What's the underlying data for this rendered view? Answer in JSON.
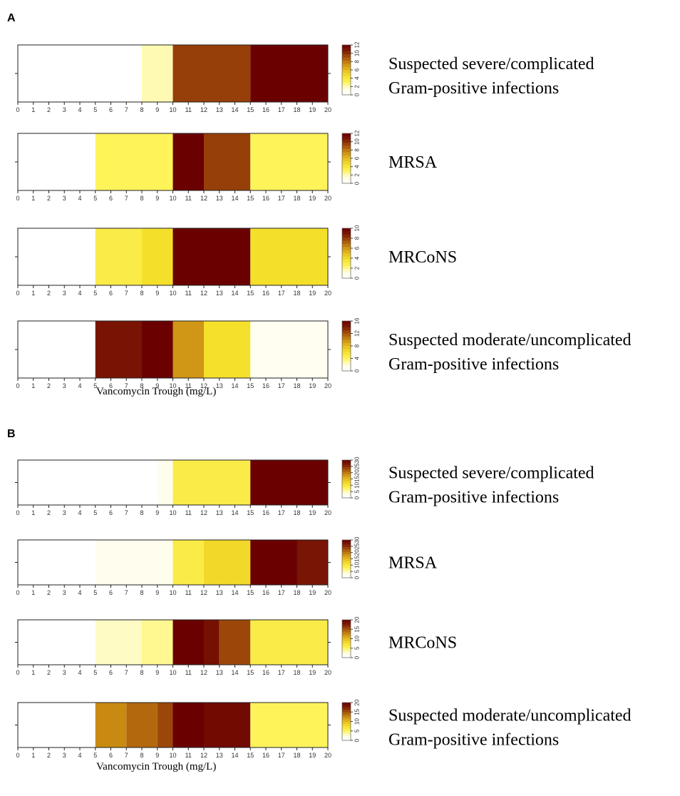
{
  "chart_data": [
    {
      "panel": "A",
      "type": "heatmap",
      "xlabel": "Vancomycin Trough (mg/L)",
      "xlim": [
        0,
        20
      ],
      "xticks": [
        0,
        1,
        2,
        3,
        4,
        5,
        6,
        7,
        8,
        9,
        10,
        11,
        12,
        13,
        14,
        15,
        16,
        17,
        18,
        19,
        20
      ],
      "rows": [
        {
          "label_lines": [
            "Suspected severe/complicated",
            "Gram-positive infections"
          ],
          "colorbar_ticks": [
            "0",
            "2",
            "4",
            "6",
            "8",
            "10",
            "12"
          ],
          "cmax": 12,
          "segments": [
            {
              "from": 0,
              "to": 8,
              "value": 0
            },
            {
              "from": 8,
              "to": 10,
              "value": 2
            },
            {
              "from": 10,
              "to": 15,
              "value": 9.5
            },
            {
              "from": 15,
              "to": 20,
              "value": 12
            }
          ]
        },
        {
          "label_lines": [
            "MRSA"
          ],
          "colorbar_ticks": [
            "0",
            "2",
            "4",
            "6",
            "8",
            "10",
            "12"
          ],
          "cmax": 12,
          "segments": [
            {
              "from": 0,
              "to": 5,
              "value": 0
            },
            {
              "from": 5,
              "to": 10,
              "value": 3
            },
            {
              "from": 10,
              "to": 12,
              "value": 12
            },
            {
              "from": 12,
              "to": 15,
              "value": 9.5
            },
            {
              "from": 15,
              "to": 20,
              "value": 3
            }
          ]
        },
        {
          "label_lines": [
            "MRCoNS"
          ],
          "colorbar_ticks": [
            "0",
            "2",
            "4",
            "6",
            "8",
            "10"
          ],
          "cmax": 10,
          "segments": [
            {
              "from": 0,
              "to": 5,
              "value": 0
            },
            {
              "from": 5,
              "to": 8,
              "value": 3
            },
            {
              "from": 8,
              "to": 10,
              "value": 3.8
            },
            {
              "from": 10,
              "to": 15,
              "value": 10
            },
            {
              "from": 15,
              "to": 20,
              "value": 3.8
            }
          ]
        },
        {
          "label_lines": [
            "Suspected moderate/uncomplicated",
            "Gram-positive infections"
          ],
          "colorbar_ticks": [
            "0",
            "4",
            "8",
            "12",
            "16"
          ],
          "cmax": 16,
          "segments": [
            {
              "from": 0,
              "to": 5,
              "value": 0
            },
            {
              "from": 5,
              "to": 8,
              "value": 14.5
            },
            {
              "from": 8,
              "to": 10,
              "value": 16
            },
            {
              "from": 10,
              "to": 12,
              "value": 9.5
            },
            {
              "from": 12,
              "to": 15,
              "value": 6
            },
            {
              "from": 15,
              "to": 20,
              "value": 1
            }
          ]
        }
      ]
    },
    {
      "panel": "B",
      "type": "heatmap",
      "xlabel": "Vancomycin Trough (mg/L)",
      "xlim": [
        0,
        20
      ],
      "xticks": [
        0,
        1,
        2,
        3,
        4,
        5,
        6,
        7,
        8,
        9,
        10,
        11,
        12,
        13,
        14,
        15,
        16,
        17,
        18,
        19,
        20
      ],
      "rows": [
        {
          "label_lines": [
            "Suspected severe/complicated",
            "Gram-positive infections"
          ],
          "colorbar_ticks": [
            "0",
            "5",
            "10",
            "15",
            "20",
            "25",
            "30"
          ],
          "cmax": 30,
          "segments": [
            {
              "from": 0,
              "to": 9,
              "value": 0
            },
            {
              "from": 9,
              "to": 10,
              "value": 2
            },
            {
              "from": 10,
              "to": 15,
              "value": 9
            },
            {
              "from": 15,
              "to": 20,
              "value": 30
            }
          ]
        },
        {
          "label_lines": [
            "MRSA"
          ],
          "colorbar_ticks": [
            "0",
            "5",
            "10",
            "15",
            "20",
            "25",
            "30"
          ],
          "cmax": 30,
          "segments": [
            {
              "from": 0,
              "to": 5,
              "value": 0
            },
            {
              "from": 5,
              "to": 10,
              "value": 2
            },
            {
              "from": 10,
              "to": 12,
              "value": 9
            },
            {
              "from": 12,
              "to": 15,
              "value": 12
            },
            {
              "from": 15,
              "to": 18,
              "value": 30
            },
            {
              "from": 18,
              "to": 20,
              "value": 27
            }
          ]
        },
        {
          "label_lines": [
            "MRCoNS"
          ],
          "colorbar_ticks": [
            "0",
            "5",
            "10",
            "15",
            "20"
          ],
          "cmax": 20,
          "segments": [
            {
              "from": 0,
              "to": 5,
              "value": 0
            },
            {
              "from": 5,
              "to": 8,
              "value": 3
            },
            {
              "from": 8,
              "to": 10,
              "value": 4
            },
            {
              "from": 10,
              "to": 12,
              "value": 20
            },
            {
              "from": 12,
              "to": 13,
              "value": 18.5
            },
            {
              "from": 13,
              "to": 15,
              "value": 15.5
            },
            {
              "from": 15,
              "to": 20,
              "value": 6
            }
          ]
        },
        {
          "label_lines": [
            "Suspected moderate/uncomplicated",
            "Gram-positive infections"
          ],
          "colorbar_ticks": [
            "0",
            "5",
            "10",
            "15",
            "20"
          ],
          "cmax": 20,
          "segments": [
            {
              "from": 0,
              "to": 5,
              "value": 0
            },
            {
              "from": 5,
              "to": 7,
              "value": 12.5
            },
            {
              "from": 7,
              "to": 9,
              "value": 14
            },
            {
              "from": 9,
              "to": 10,
              "value": 15.5
            },
            {
              "from": 10,
              "to": 12,
              "value": 20
            },
            {
              "from": 12,
              "to": 15,
              "value": 19
            },
            {
              "from": 15,
              "to": 20,
              "value": 5
            }
          ]
        }
      ]
    }
  ],
  "colors": {
    "ramp": [
      "#ffffff",
      "#fffde0",
      "#fff35a",
      "#f5e02c",
      "#e6bb1e",
      "#c98a12",
      "#a4520a",
      "#7d1a05",
      "#6b0000"
    ]
  }
}
